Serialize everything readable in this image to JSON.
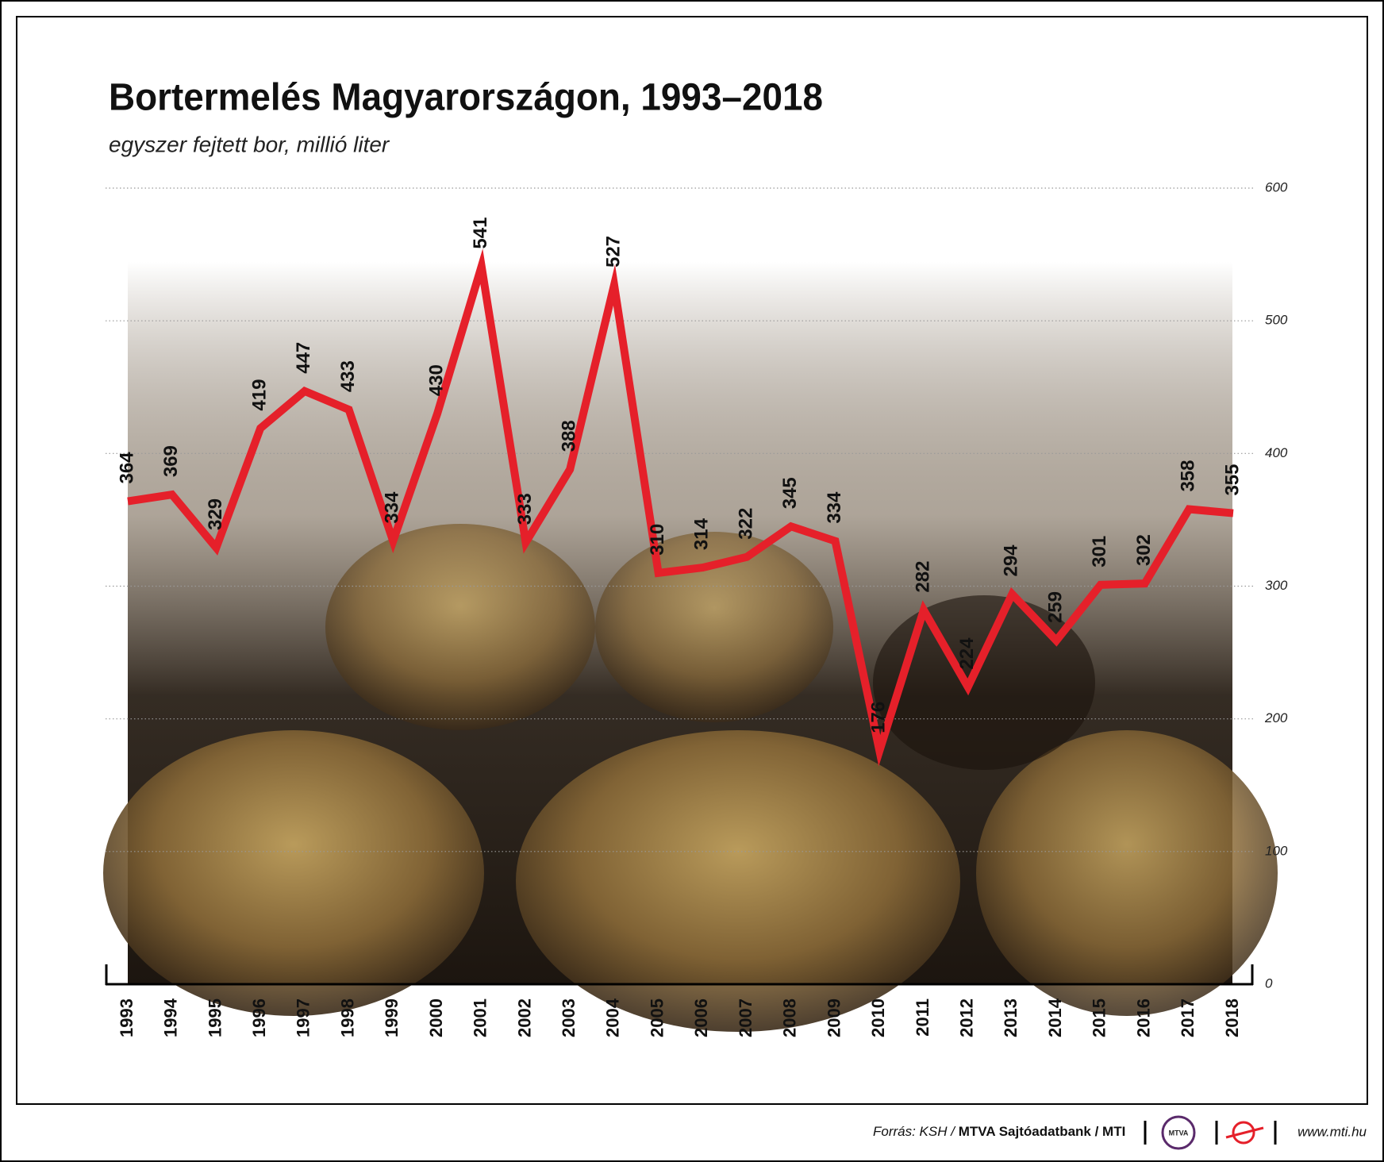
{
  "chart_data": {
    "type": "line",
    "title": "Bortermelés Magyarországon, 1993–2018",
    "subtitle": "egyszer fejtett bor, millió liter",
    "categories": [
      "1993",
      "1994",
      "1995",
      "1996",
      "1997",
      "1998",
      "1999",
      "2000",
      "2001",
      "2002",
      "2003",
      "2004",
      "2005",
      "2006",
      "2007",
      "2008",
      "2009",
      "2010",
      "2011",
      "2012",
      "2013",
      "2014",
      "2015",
      "2016",
      "2017",
      "2018"
    ],
    "series": [
      {
        "name": "Bortermelés",
        "color": "#e5202a",
        "values": [
          364,
          369,
          329,
          419,
          447,
          433,
          334,
          430,
          541,
          333,
          388,
          527,
          310,
          314,
          322,
          345,
          334,
          176,
          282,
          224,
          294,
          259,
          301,
          302,
          358,
          355
        ]
      }
    ],
    "ylim": [
      0,
      600
    ],
    "yticks": [
      0,
      100,
      200,
      300,
      400,
      500,
      600
    ],
    "grid": true,
    "y_axis_side": "right",
    "source": "Forrás: KSH /",
    "source_org": "MTVA Sajtóadatbank / MTI",
    "logo_text": "MTVA",
    "url": "www.mti.hu"
  }
}
